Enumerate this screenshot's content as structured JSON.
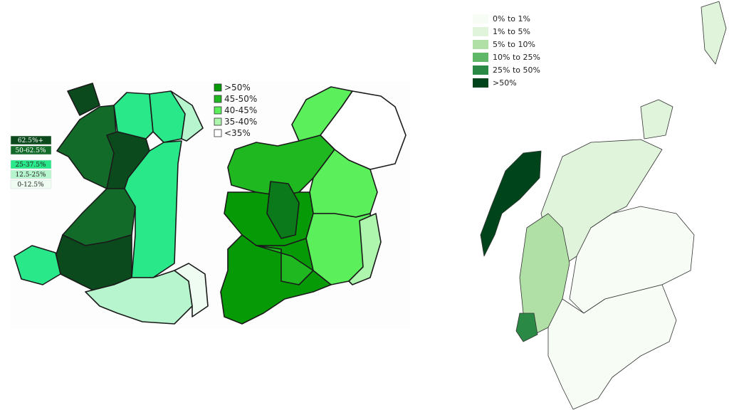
{
  "wales": {
    "legend": [
      {
        "label": "62.5%+",
        "color": "#0b4a1c"
      },
      {
        "label": "50-62.5%",
        "color": "#136b2a"
      },
      {
        "label": "25-37.5%",
        "color": "#29e88a"
      },
      {
        "label": "12.5-25%",
        "color": "#b7f5cf"
      },
      {
        "label": "0-12.5%",
        "color": "#eefcf2"
      }
    ]
  },
  "ireland": {
    "legend": [
      {
        "label": ">50%",
        "color": "#079a07"
      },
      {
        "label": "45-50%",
        "color": "#20b820"
      },
      {
        "label": "40-45%",
        "color": "#5cef5c"
      },
      {
        "label": "35-40%",
        "color": "#aef5ae"
      },
      {
        "label": "<35%",
        "color": "#ffffff"
      }
    ]
  },
  "scotland": {
    "legend": [
      {
        "label": "0% to 1%",
        "color": "#f7fcf5"
      },
      {
        "label": "1% to 5%",
        "color": "#e0f3db"
      },
      {
        "label": "5% to 10%",
        "color": "#b0e0a6"
      },
      {
        "label": "10% to 25%",
        "color": "#5fb868"
      },
      {
        "label": "25% to 50%",
        "color": "#2a8a45"
      },
      {
        "label": ">50%",
        "color": "#00441b"
      }
    ]
  }
}
